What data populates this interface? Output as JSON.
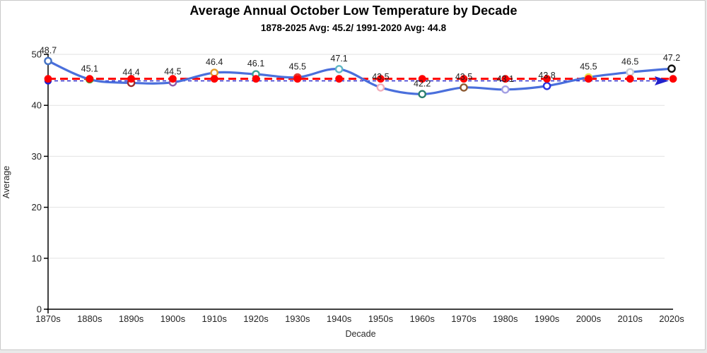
{
  "chart_data": {
    "type": "line",
    "title": "Average Annual October Low Temperature by Decade",
    "subtitle": "1878-2025 Avg: 45.2/ 1991-2020 Avg: 44.8",
    "xlabel": "Decade",
    "ylabel": "Average",
    "ylim": [
      0,
      50
    ],
    "yticks": [
      0,
      10,
      20,
      30,
      40,
      50
    ],
    "grid": true,
    "legend_position": "none",
    "categories": [
      "1870s",
      "1880s",
      "1890s",
      "1900s",
      "1910s",
      "1920s",
      "1930s",
      "1940s",
      "1950s",
      "1960s",
      "1970s",
      "1980s",
      "1990s",
      "2000s",
      "2010s",
      "2020s"
    ],
    "series": [
      {
        "type": "smooth-line",
        "color": "#4a6fdc",
        "line_width": 3.2,
        "values": [
          48.7,
          45.1,
          44.4,
          44.5,
          46.4,
          46.1,
          45.5,
          47.1,
          43.5,
          42.2,
          43.5,
          43.1,
          43.8,
          45.5,
          46.5,
          47.2
        ],
        "data_labels": true,
        "marker_fill": "#ffffff",
        "marker_colors": [
          "#4472c4",
          "#4ea72e",
          "#a02b2b",
          "#8f5bab",
          "#e39b2d",
          "#3ba394",
          "#e03c31",
          "#5fb6c4",
          "#f2aebb",
          "#2a7f6f",
          "#8c5a33",
          "#a39fe3",
          "#2b35df",
          "#eae04a",
          "#c9cdd4",
          "#111111"
        ]
      },
      {
        "name": "1878-2025 Avg",
        "type": "reference-line",
        "value": 45.2,
        "color": "#ff0000",
        "dash": "11 6",
        "line_width": 3,
        "dot_color": "#ff0000",
        "dots_at_categories": true
      },
      {
        "name": "1991-2020 Avg",
        "type": "reference-line",
        "value": 44.8,
        "color": "#2222cc",
        "dash": "5 4",
        "line_width": 1.4,
        "start_dot": true,
        "arrow_end": true
      }
    ]
  },
  "colors": {
    "grid": "#e2e2e2",
    "axis": "#000000",
    "tick_label": "#242424",
    "data_label": "#1f1f1f"
  }
}
